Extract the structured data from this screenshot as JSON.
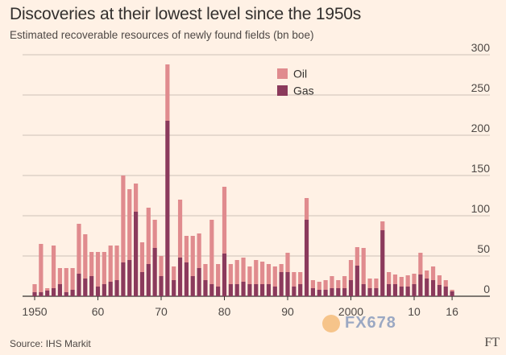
{
  "header": {
    "title": "Discoveries at their lowest level since the 1950s",
    "subtitle": "Estimated recoverable resources of newly found fields (bn boe)"
  },
  "footer": {
    "source": "Source: IHS Markit",
    "logo": "FT",
    "watermark": "FX678"
  },
  "colors": {
    "oil": "#e08b8e",
    "gas": "#8b3a5c",
    "grid": "#ccc1b7",
    "background": "#fff1e5"
  },
  "chart_data": {
    "type": "bar",
    "stacked": true,
    "title": "Discoveries at their lowest level since the 1950s",
    "subtitle": "Estimated recoverable resources of newly found fields (bn boe)",
    "xlabel": "",
    "ylabel": "",
    "ylim": [
      0,
      300
    ],
    "y_ticks": [
      0,
      50,
      100,
      150,
      200,
      250,
      300
    ],
    "y_axis_side": "right",
    "grid": true,
    "legend_position": "top-center",
    "x_tick_labels": [
      {
        "year": 1950,
        "label": "1950"
      },
      {
        "year": 1960,
        "label": "60"
      },
      {
        "year": 1970,
        "label": "70"
      },
      {
        "year": 1980,
        "label": "80"
      },
      {
        "year": 1990,
        "label": "90"
      },
      {
        "year": 2000,
        "label": "2000"
      },
      {
        "year": 2010,
        "label": "10"
      },
      {
        "year": 2016,
        "label": "16"
      }
    ],
    "categories": [
      1950,
      1951,
      1952,
      1953,
      1954,
      1955,
      1956,
      1957,
      1958,
      1959,
      1960,
      1961,
      1962,
      1963,
      1964,
      1965,
      1966,
      1967,
      1968,
      1969,
      1970,
      1971,
      1972,
      1973,
      1974,
      1975,
      1976,
      1977,
      1978,
      1979,
      1980,
      1981,
      1982,
      1983,
      1984,
      1985,
      1986,
      1987,
      1988,
      1989,
      1990,
      1991,
      1992,
      1993,
      1994,
      1995,
      1996,
      1997,
      1998,
      1999,
      2000,
      2001,
      2002,
      2003,
      2004,
      2005,
      2006,
      2007,
      2008,
      2009,
      2010,
      2011,
      2012,
      2013,
      2014,
      2015,
      2016
    ],
    "series": [
      {
        "name": "Gas",
        "values": [
          5,
          5,
          7,
          10,
          15,
          5,
          8,
          28,
          22,
          25,
          12,
          15,
          18,
          20,
          42,
          45,
          105,
          30,
          40,
          60,
          25,
          218,
          20,
          48,
          42,
          25,
          35,
          20,
          15,
          12,
          53,
          15,
          15,
          18,
          15,
          15,
          15,
          15,
          12,
          30,
          30,
          12,
          15,
          95,
          10,
          8,
          8,
          10,
          10,
          10,
          20,
          38,
          15,
          10,
          10,
          82,
          15,
          15,
          12,
          12,
          15,
          27,
          22,
          20,
          14,
          12,
          6
        ]
      },
      {
        "name": "Oil",
        "values": [
          10,
          60,
          3,
          53,
          20,
          30,
          27,
          62,
          55,
          30,
          43,
          40,
          45,
          43,
          108,
          88,
          35,
          37,
          70,
          35,
          25,
          70,
          17,
          72,
          33,
          50,
          43,
          20,
          80,
          28,
          83,
          25,
          30,
          30,
          22,
          30,
          28,
          25,
          25,
          10,
          24,
          18,
          15,
          27,
          10,
          10,
          12,
          15,
          10,
          15,
          25,
          23,
          45,
          12,
          12,
          11,
          15,
          12,
          12,
          14,
          13,
          27,
          10,
          17,
          12,
          8,
          2
        ]
      }
    ]
  }
}
